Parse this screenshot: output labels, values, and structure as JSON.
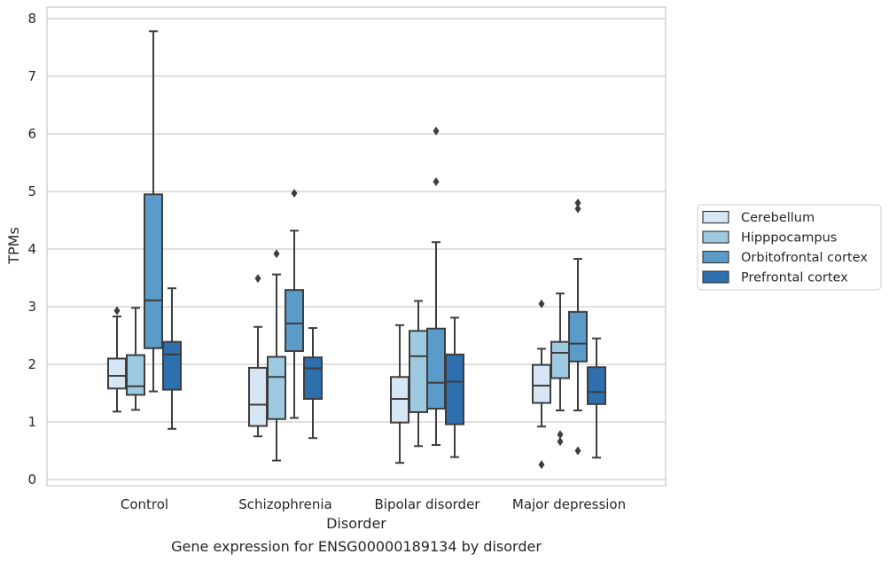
{
  "caption": "Gene expression for ENSG00000189134 by disorder",
  "chart_data": {
    "type": "box",
    "title": "",
    "xlabel": "Disorder",
    "ylabel": "TPMs",
    "ylim": [
      -0.1,
      8.2
    ],
    "yticks": [
      0,
      1,
      2,
      3,
      4,
      5,
      6,
      7,
      8
    ],
    "grid": "horizontal",
    "legend_position": "right",
    "categories": [
      "Control",
      "Schizophrenia",
      "Bipolar disorder",
      "Major depression"
    ],
    "series": [
      {
        "name": "Cerebellum",
        "color": "#d6e6f4",
        "boxes": [
          {
            "whislo": 1.18,
            "q1": 1.58,
            "med": 1.8,
            "q3": 2.1,
            "whishi": 2.83,
            "fliers": [
              2.93
            ]
          },
          {
            "whislo": 0.75,
            "q1": 0.93,
            "med": 1.3,
            "q3": 1.94,
            "whishi": 2.65,
            "fliers": [
              3.49
            ]
          },
          {
            "whislo": 0.29,
            "q1": 0.99,
            "med": 1.4,
            "q3": 1.78,
            "whishi": 2.68,
            "fliers": []
          },
          {
            "whislo": 0.92,
            "q1": 1.33,
            "med": 1.63,
            "q3": 1.99,
            "whishi": 2.27,
            "fliers": [
              3.05,
              0.26
            ]
          }
        ]
      },
      {
        "name": "Hipppocampus",
        "color": "#9ecae1",
        "boxes": [
          {
            "whislo": 1.21,
            "q1": 1.47,
            "med": 1.62,
            "q3": 2.16,
            "whishi": 2.98,
            "fliers": []
          },
          {
            "whislo": 0.33,
            "q1": 1.05,
            "med": 1.78,
            "q3": 2.13,
            "whishi": 3.56,
            "fliers": [
              3.92
            ]
          },
          {
            "whislo": 0.58,
            "q1": 1.17,
            "med": 2.14,
            "q3": 2.58,
            "whishi": 3.1,
            "fliers": []
          },
          {
            "whislo": 1.2,
            "q1": 1.76,
            "med": 2.2,
            "q3": 2.39,
            "whishi": 3.23,
            "fliers": [
              0.78,
              0.66
            ]
          }
        ]
      },
      {
        "name": "Orbitofrontal cortex",
        "color": "#5a9bc9",
        "boxes": [
          {
            "whislo": 1.53,
            "q1": 2.28,
            "med": 3.11,
            "q3": 4.95,
            "whishi": 7.78,
            "fliers": []
          },
          {
            "whislo": 1.07,
            "q1": 2.23,
            "med": 2.71,
            "q3": 3.29,
            "whishi": 4.32,
            "fliers": [
              4.97
            ]
          },
          {
            "whislo": 0.6,
            "q1": 1.23,
            "med": 1.68,
            "q3": 2.62,
            "whishi": 4.12,
            "fliers": [
              6.05,
              5.17
            ]
          },
          {
            "whislo": 1.2,
            "q1": 2.05,
            "med": 2.36,
            "q3": 2.91,
            "whishi": 3.83,
            "fliers": [
              4.8,
              4.7,
              0.5
            ]
          }
        ]
      },
      {
        "name": "Prefrontal cortex",
        "color": "#2e6fae",
        "boxes": [
          {
            "whislo": 0.88,
            "q1": 1.56,
            "med": 2.17,
            "q3": 2.39,
            "whishi": 3.32,
            "fliers": []
          },
          {
            "whislo": 0.72,
            "q1": 1.4,
            "med": 1.93,
            "q3": 2.12,
            "whishi": 2.63,
            "fliers": []
          },
          {
            "whislo": 0.39,
            "q1": 0.96,
            "med": 1.7,
            "q3": 2.17,
            "whishi": 2.81,
            "fliers": []
          },
          {
            "whislo": 0.38,
            "q1": 1.31,
            "med": 1.52,
            "q3": 1.95,
            "whishi": 2.45,
            "fliers": []
          }
        ]
      }
    ]
  }
}
